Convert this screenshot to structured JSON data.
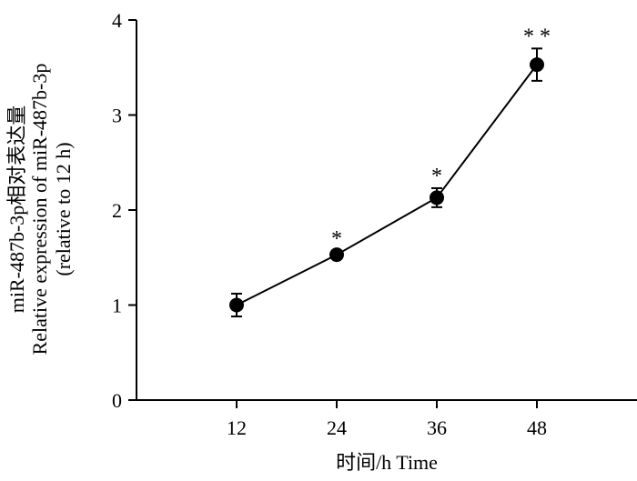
{
  "chart_data": {
    "type": "line",
    "x": [
      12,
      24,
      36,
      48
    ],
    "series": [
      {
        "name": "miR-487b-3p",
        "values": [
          1.0,
          1.53,
          2.13,
          3.53
        ],
        "errors": [
          0.12,
          0.04,
          0.1,
          0.17
        ],
        "significance": [
          "",
          "*",
          "*",
          "* *"
        ]
      }
    ],
    "xlabel": "时间/h Time",
    "ylabel_lines": [
      "miR-487b-3p相对表达量",
      "Relative expression of miR-487b-3p",
      "(relative to 12 h)"
    ],
    "xlim": [
      0,
      60
    ],
    "ylim": [
      0,
      4
    ],
    "xticks": [
      12,
      24,
      36,
      48
    ],
    "yticks": [
      0,
      1,
      2,
      3,
      4
    ],
    "grid": false,
    "line_color": "#000000",
    "marker_color": "#000000"
  }
}
